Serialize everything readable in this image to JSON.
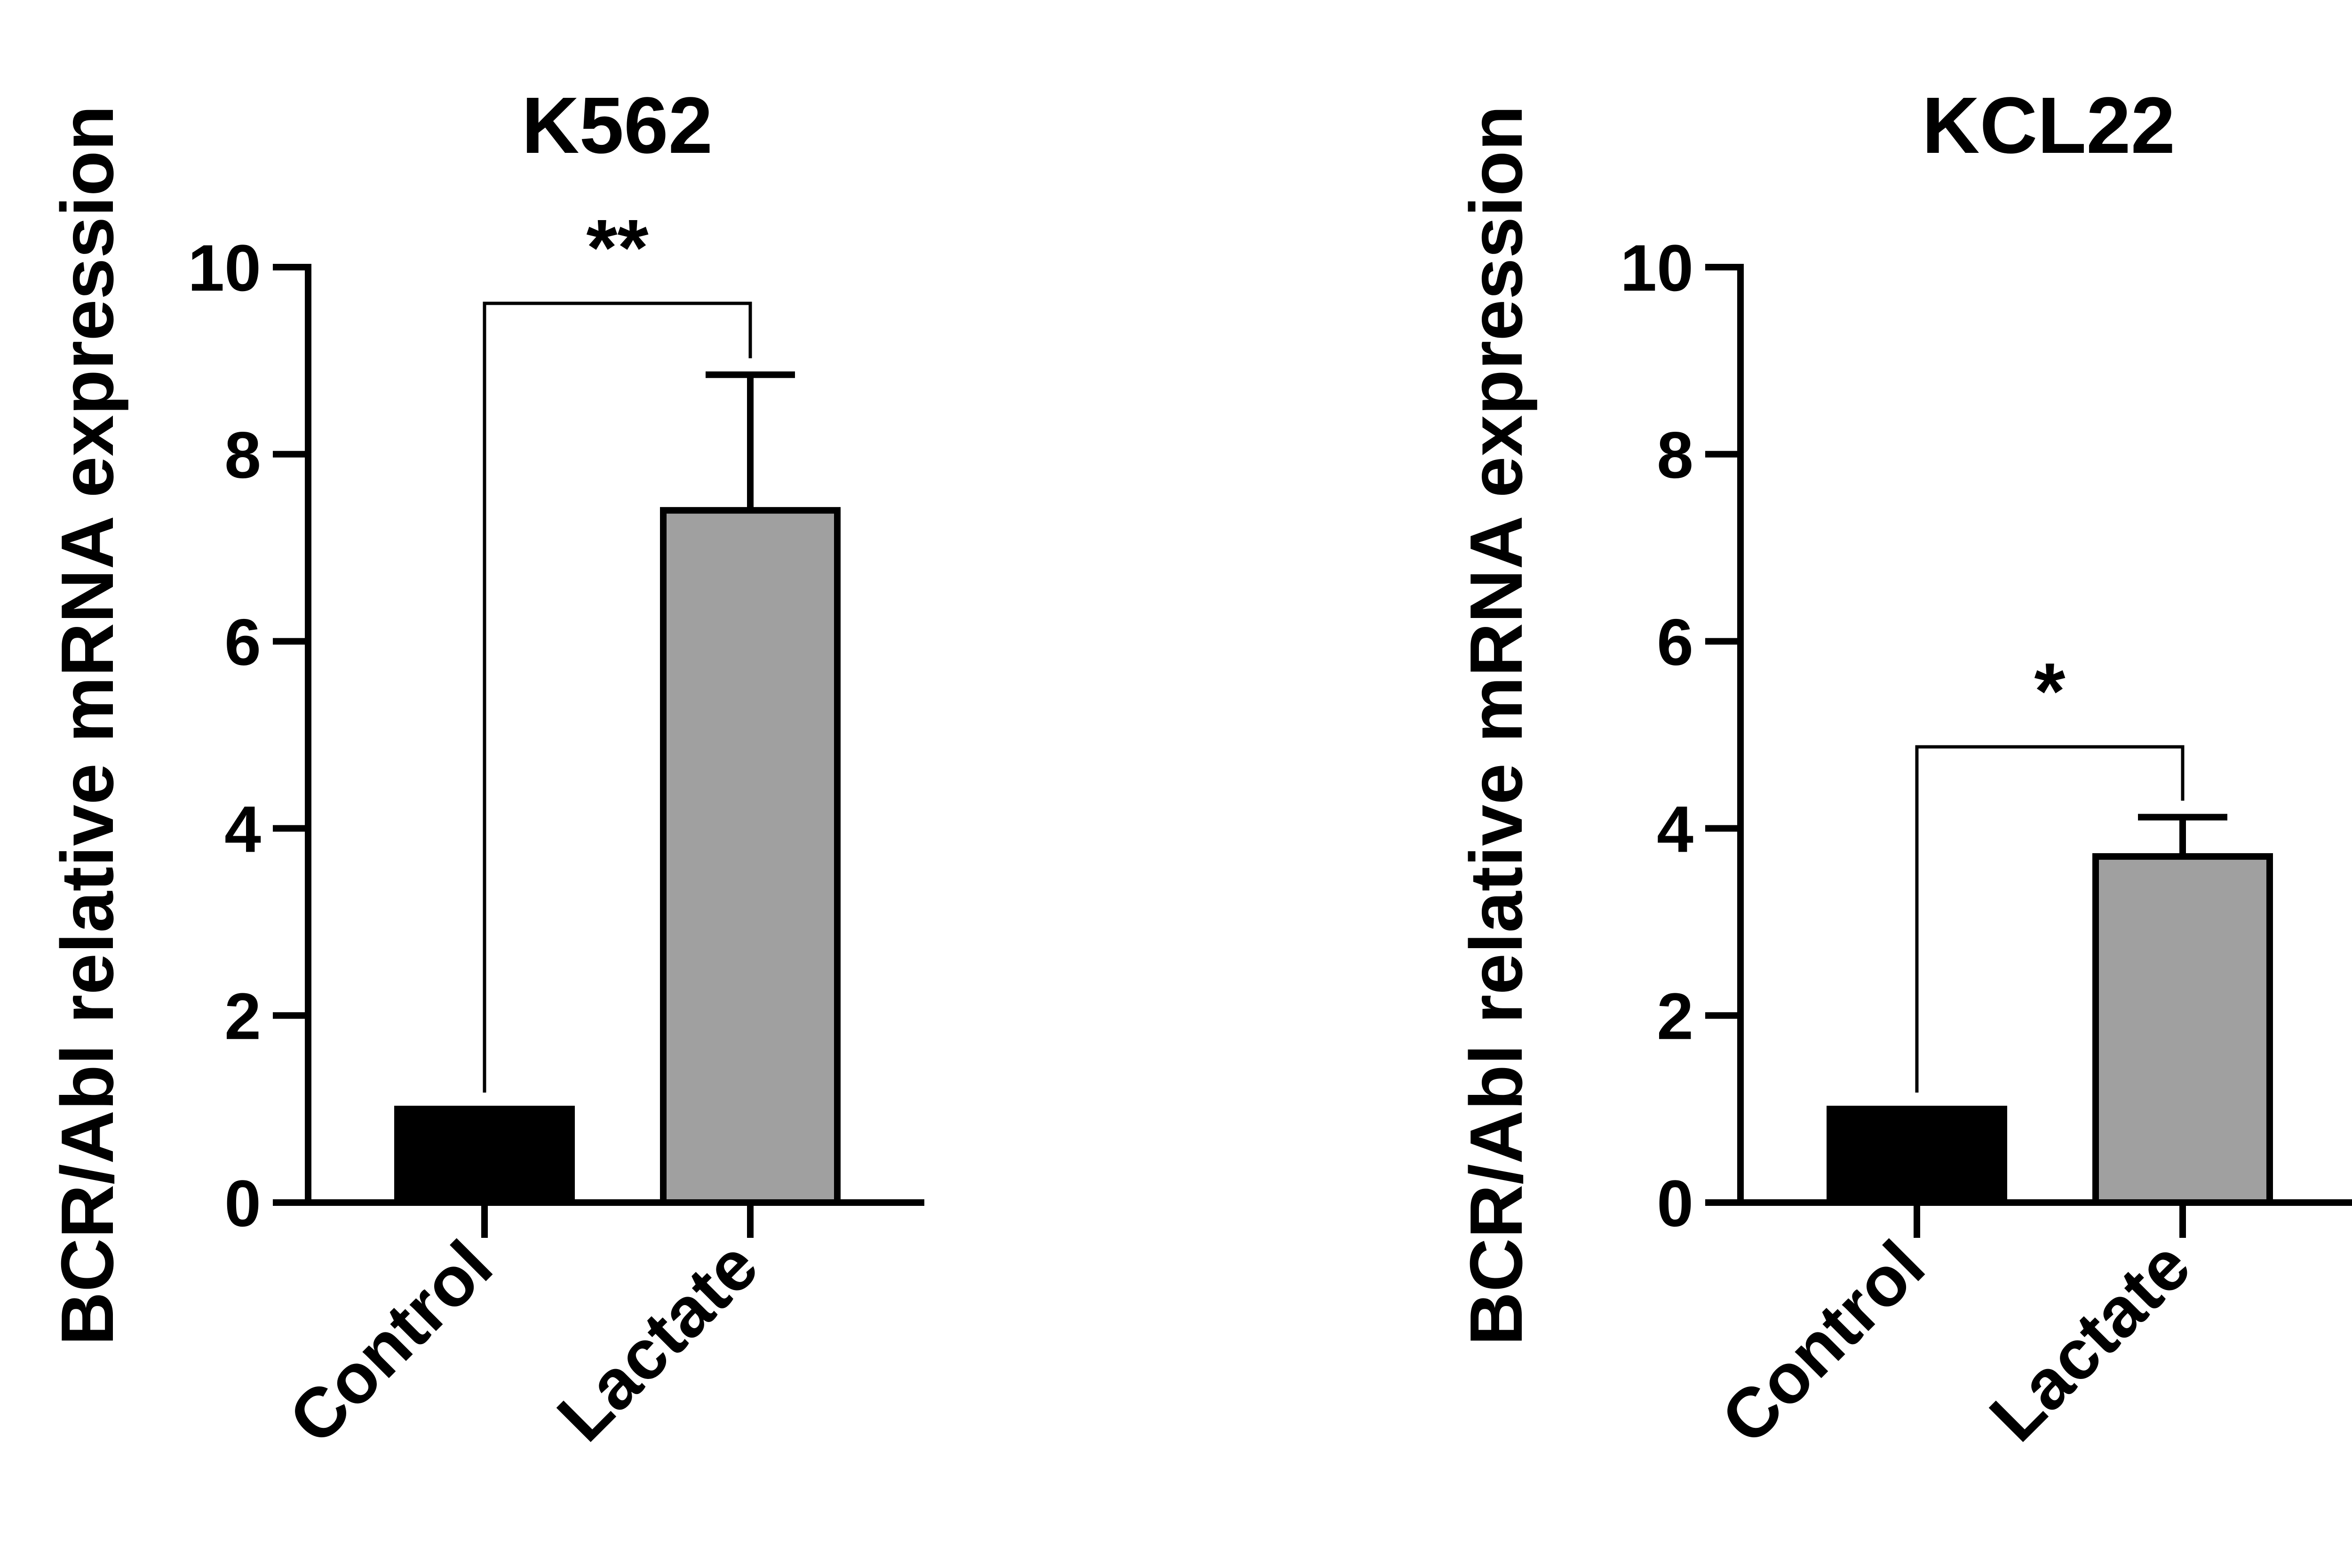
{
  "chart_data": [
    {
      "type": "bar",
      "title": "K562",
      "ylabel": "BCR/Abl relative mRNA expression",
      "xlabel": "",
      "categories": [
        "Control",
        "Lactate"
      ],
      "values": [
        1.0,
        7.4
      ],
      "error_upper": [
        0.0,
        1.45
      ],
      "bar_colors": [
        "#000000",
        "#a0a0a0"
      ],
      "ylim": [
        0,
        10
      ],
      "yticks": [
        0,
        2,
        4,
        6,
        8,
        10
      ],
      "significance": {
        "from": "Control",
        "to": "Lactate",
        "label": "**"
      },
      "grid": false
    },
    {
      "type": "bar",
      "title": "KCL22",
      "ylabel": "BCR/Abl relative mRNA expression",
      "xlabel": "",
      "categories": [
        "Control",
        "Lactate"
      ],
      "values": [
        1.0,
        3.7
      ],
      "error_upper": [
        0.0,
        0.42
      ],
      "bar_colors": [
        "#000000",
        "#a0a0a0"
      ],
      "ylim": [
        0,
        10
      ],
      "yticks": [
        0,
        2,
        4,
        6,
        8,
        10
      ],
      "significance": {
        "from": "Control",
        "to": "Lactate",
        "label": "*"
      },
      "grid": false
    }
  ]
}
